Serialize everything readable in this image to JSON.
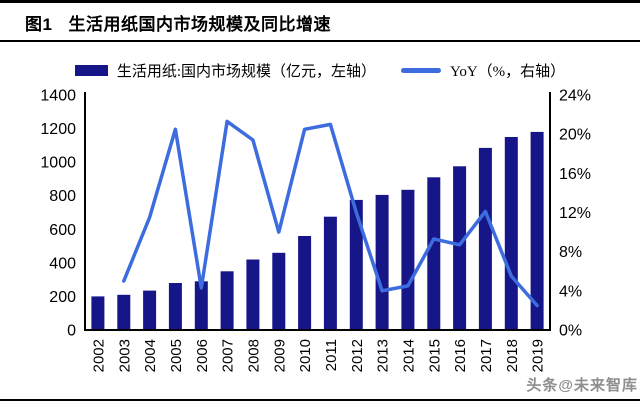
{
  "header": {
    "fig_label": "图1",
    "title": "生活用纸国内市场规模及同比增速"
  },
  "legend": {
    "bar_label": "生活用纸:国内市场规模（亿元，左轴）",
    "line_label": "YoY（%，右轴）"
  },
  "watermark": "头条@未来智库",
  "colors": {
    "bar": "#161689",
    "line": "#3C6CDE",
    "axis": "#000000",
    "text": "#000000",
    "watermark": "#8e8e8e"
  },
  "chart_data": {
    "type": "bar",
    "subtype": "combo-bar-line-dual-axis",
    "title": "生活用纸国内市场规模及同比增速",
    "categories": [
      "2002",
      "2003",
      "2004",
      "2005",
      "2006",
      "2007",
      "2008",
      "2009",
      "2010",
      "2011",
      "2012",
      "2013",
      "2014",
      "2015",
      "2016",
      "2017",
      "2018",
      "2019"
    ],
    "series": [
      {
        "name": "生活用纸:国内市场规模（亿元，左轴）",
        "type": "bar",
        "axis": "left",
        "values": [
          200,
          210,
          235,
          280,
          290,
          350,
          420,
          460,
          560,
          675,
          775,
          805,
          835,
          910,
          975,
          1085,
          1150,
          1180
        ]
      },
      {
        "name": "YoY（%，右轴）",
        "type": "line",
        "axis": "right",
        "values": [
          null,
          5.0,
          11.5,
          20.5,
          4.3,
          21.3,
          19.4,
          10.0,
          20.5,
          21.0,
          12.0,
          4.0,
          4.5,
          9.3,
          8.7,
          12.1,
          5.5,
          2.5
        ]
      }
    ],
    "left_axis": {
      "min": 0,
      "max": 1400,
      "step": 200,
      "ticks": [
        "0",
        "200",
        "400",
        "600",
        "800",
        "1000",
        "1200",
        "1400"
      ]
    },
    "right_axis": {
      "min": 0,
      "max": 24,
      "step": 4,
      "ticks": [
        "0%",
        "4%",
        "8%",
        "12%",
        "16%",
        "20%",
        "24%"
      ]
    },
    "grid": false,
    "legend_position": "top",
    "xlabel": "",
    "ylabel_left": "亿元",
    "ylabel_right": "%"
  }
}
